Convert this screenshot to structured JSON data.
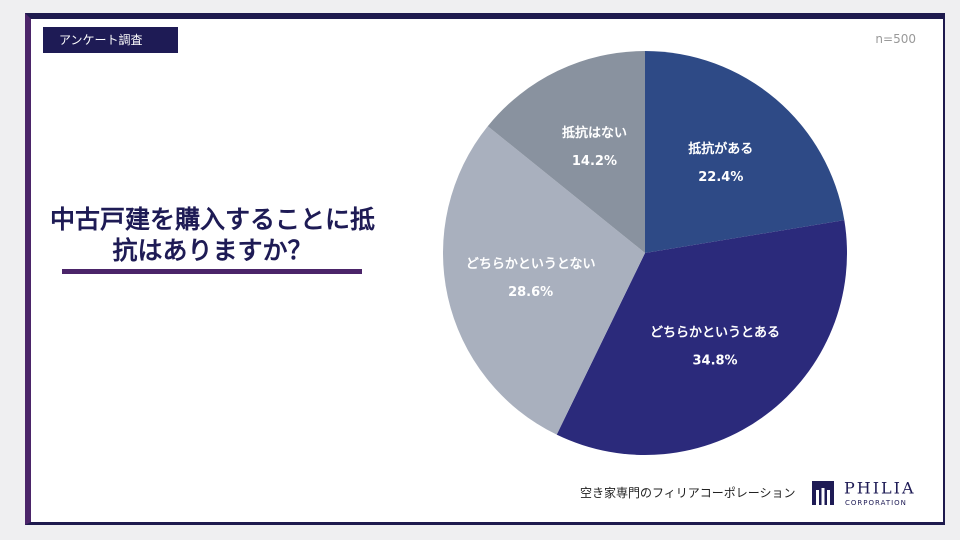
{
  "badge": "アンケート調査",
  "note": "n=500",
  "chart_data": {
    "type": "pie",
    "title": "中古戸建を購入することに抵抗はありますか？",
    "categories": [
      "抵抗がある",
      "どちらかというとある",
      "どちらかというとない",
      "抵抗はない"
    ],
    "values": [
      22.4,
      34.8,
      28.6,
      14.2
    ],
    "value_labels": [
      "22.4%",
      "34.8%",
      "28.6%",
      "14.2%"
    ],
    "colors": [
      "#2e4a86",
      "#2b2a7b",
      "#a9b0be",
      "#89929f"
    ]
  },
  "footer": {
    "company": "空き家専門のフィリアコーポレーション",
    "logo_name": "PHILIA",
    "logo_sub": "CORPORATION"
  }
}
